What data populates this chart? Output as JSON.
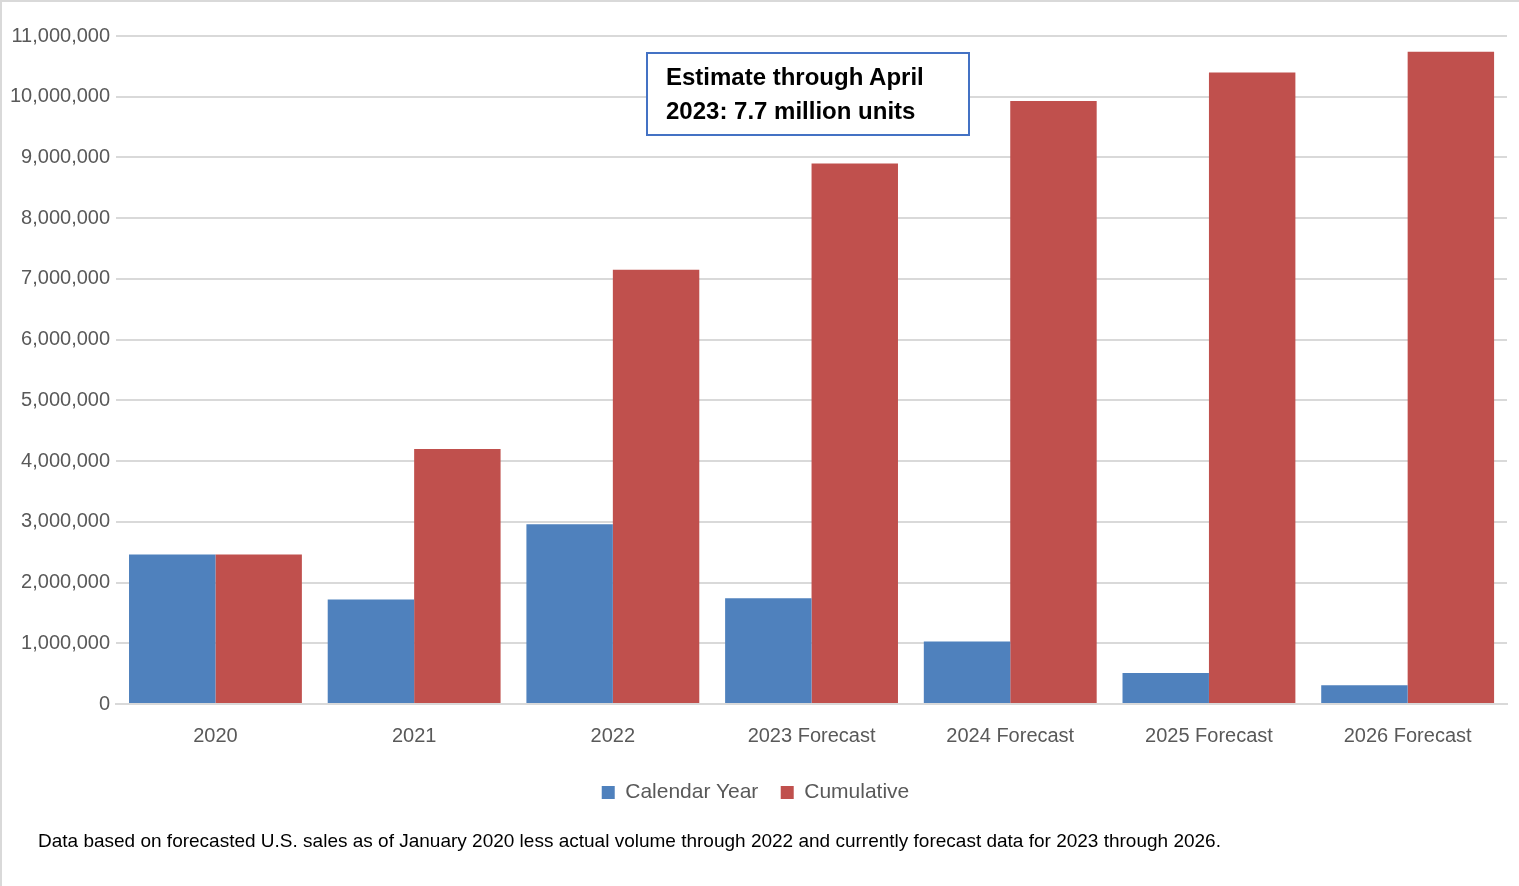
{
  "chart_data": {
    "type": "bar",
    "categories": [
      "2020",
      "2021",
      "2022",
      "2023 Forecast",
      "2024 Forecast",
      "2025 Forecast",
      "2026 Forecast"
    ],
    "series": [
      {
        "name": "Calendar Year",
        "color": "#4f81bd",
        "values": [
          2460000,
          1720000,
          2960000,
          1740000,
          1030000,
          510000,
          310000
        ]
      },
      {
        "name": "Cumulative",
        "color": "#c0504d",
        "values": [
          2460000,
          4200000,
          7150000,
          8900000,
          9930000,
          10400000,
          10740000
        ]
      }
    ],
    "ylim": [
      0,
      11000000
    ],
    "yticks": [
      0,
      {
        "value": 1000000,
        "label": "1,000,000"
      },
      {
        "value": 2000000,
        "label": "2,000,000"
      },
      {
        "value": 3000000,
        "label": "3,000,000"
      },
      {
        "value": 4000000,
        "label": "4,000,000"
      },
      {
        "value": 5000000,
        "label": "5,000,000"
      },
      {
        "value": 6000000,
        "label": "6,000,000"
      },
      {
        "value": 7000000,
        "label": "7,000,000"
      },
      {
        "value": 8000000,
        "label": "8,000,000"
      },
      {
        "value": 9000000,
        "label": "9,000,000"
      },
      {
        "value": 10000000,
        "label": "10,000,000"
      },
      {
        "value": 11000000,
        "label": "11,000,000"
      }
    ],
    "grid": "y",
    "legend": "bottom",
    "annotations": [
      "Estimate through April 2023: 7.7 million units",
      "Data based on forecasted U.S. sales as of January 2020 less actual volume through 2022 and currently forecast data for 2023 through 2026."
    ]
  }
}
